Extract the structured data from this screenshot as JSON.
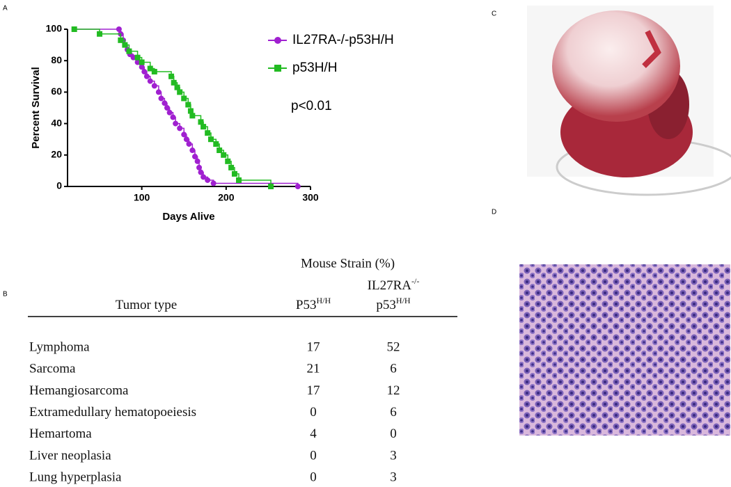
{
  "panels": {
    "a": "A",
    "b": "B",
    "c": "C",
    "d": "D"
  },
  "chart_data": {
    "type": "step",
    "x_label": "Days Alive",
    "y_label": "Percent Survival",
    "annotation": "p<0.01",
    "xlim": [
      12,
      300
    ],
    "ylim": [
      0,
      100
    ],
    "xticks": [
      100,
      200,
      300
    ],
    "yticks": [
      0,
      20,
      40,
      60,
      80,
      100
    ],
    "series": [
      {
        "name": "IL27RA-/-p53H/H",
        "color": "#a020d0",
        "marker": "circle",
        "x": [
          20,
          73,
          75,
          78,
          80,
          83,
          86,
          90,
          95,
          100,
          103,
          106,
          110,
          115,
          120,
          123,
          127,
          130,
          133,
          137,
          140,
          145,
          150,
          153,
          156,
          160,
          163,
          166,
          168,
          170,
          173,
          178,
          185,
          285
        ],
        "values": [
          100,
          100,
          97,
          93,
          90,
          87,
          84,
          82,
          79,
          76,
          73,
          70,
          67,
          64,
          60,
          56,
          53,
          50,
          47,
          44,
          40,
          37,
          33,
          30,
          27,
          23,
          19,
          16,
          12,
          9,
          6,
          4,
          2,
          0
        ]
      },
      {
        "name": "p53H/H",
        "color": "#22bb22",
        "marker": "square",
        "x": [
          20,
          50,
          75,
          80,
          85,
          95,
          100,
          110,
          115,
          135,
          138,
          142,
          145,
          150,
          155,
          158,
          160,
          170,
          173,
          178,
          182,
          188,
          192,
          197,
          202,
          206,
          210,
          215,
          253
        ],
        "values": [
          100,
          97,
          93,
          90,
          86,
          82,
          79,
          75,
          73,
          70,
          66,
          63,
          60,
          56,
          52,
          48,
          45,
          41,
          38,
          34,
          30,
          27,
          23,
          20,
          16,
          12,
          8,
          4,
          0
        ]
      }
    ]
  },
  "table": {
    "group_header": "Mouse Strain (%)",
    "columns": [
      {
        "base": "Tumor type"
      },
      {
        "base": "P53",
        "sup": "H/H"
      },
      {
        "line1_base": "IL27RA",
        "line1_sup": "-/-",
        "base": "p53",
        "sup": "H/H"
      }
    ],
    "rows": [
      [
        "Lymphoma",
        "17",
        "52"
      ],
      [
        "Sarcoma",
        "21",
        "6"
      ],
      [
        "Hemangiosarcoma",
        "17",
        "12"
      ],
      [
        "Extramedullary hematopoeiesis",
        "0",
        "6"
      ],
      [
        "Hemartoma",
        "4",
        "0"
      ],
      [
        "Liver neoplasia",
        "0",
        "3"
      ],
      [
        "Lung hyperplasia",
        "0",
        "3"
      ]
    ]
  }
}
